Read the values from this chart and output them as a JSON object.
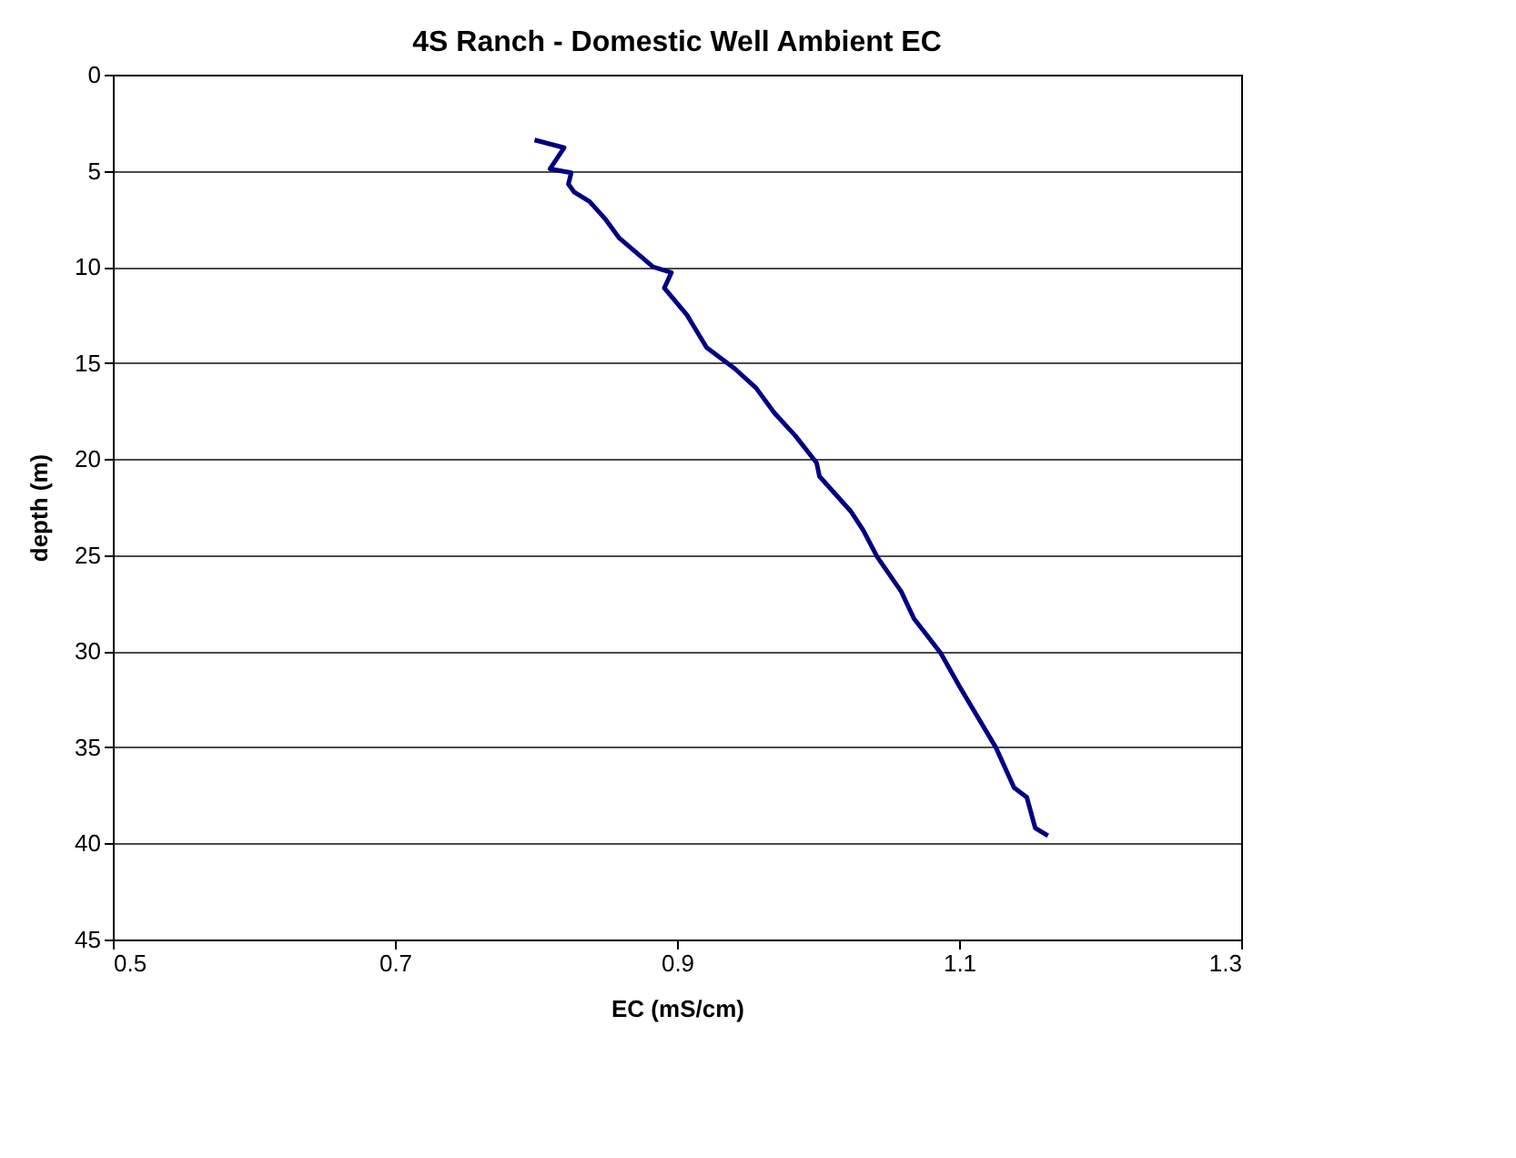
{
  "chart_data": {
    "type": "line",
    "title": "4S Ranch - Domestic Well Ambient EC",
    "xlabel": "EC (mS/cm)",
    "ylabel": "depth (m)",
    "xlim": [
      0.5,
      1.3
    ],
    "xticks": [
      0.5,
      0.7,
      0.9,
      1.1,
      1.3
    ],
    "ylim": [
      45,
      0
    ],
    "yticks": [
      0,
      5,
      10,
      15,
      20,
      25,
      30,
      35,
      40,
      45
    ],
    "grid": "y",
    "legend": false,
    "marker": "none",
    "line_style": "solid",
    "series": [
      {
        "color": "#000080",
        "x": [
          0.799,
          0.82,
          0.81,
          0.825,
          0.823,
          0.827,
          0.838,
          0.849,
          0.859,
          0.883,
          0.896,
          0.891,
          0.907,
          0.921,
          0.941,
          0.956,
          0.969,
          0.984,
          0.999,
          1.001,
          1.023,
          1.032,
          1.042,
          1.059,
          1.068,
          1.087,
          1.1,
          1.126,
          1.139,
          1.148,
          1.154,
          1.163
        ],
        "values": [
          3.4,
          3.8,
          4.9,
          5.1,
          5.7,
          6.1,
          6.6,
          7.5,
          8.5,
          10.0,
          10.3,
          11.1,
          12.5,
          14.2,
          15.3,
          16.3,
          17.6,
          18.8,
          20.2,
          20.9,
          22.7,
          23.7,
          25.1,
          26.9,
          28.3,
          30.1,
          31.8,
          35.0,
          37.1,
          37.6,
          39.2,
          39.6
        ]
      }
    ]
  }
}
